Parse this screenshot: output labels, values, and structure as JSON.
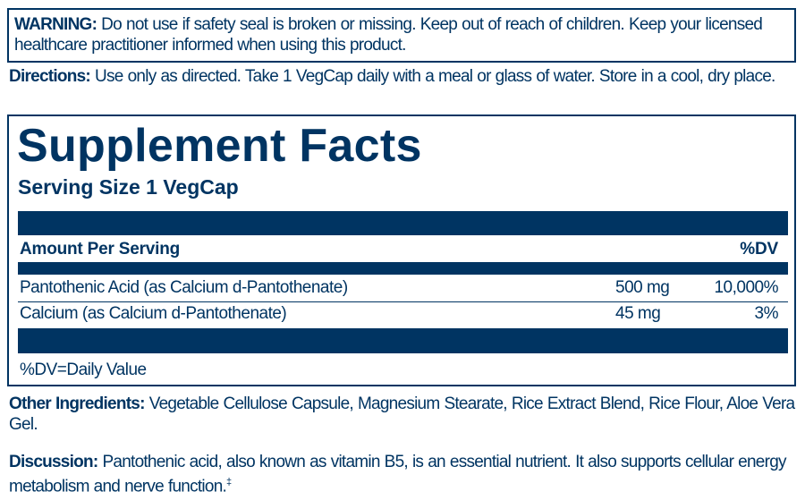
{
  "warning": {
    "label": "WARNING:",
    "text": " Do not use if safety seal is broken or missing. Keep out of reach of children. Keep your licensed healthcare practitioner informed when using this product."
  },
  "directions": {
    "label": "Directions:",
    "text": " Use only as directed. Take 1 VegCap daily with a meal or glass of water. Store in a cool, dry place."
  },
  "facts": {
    "title": "Supplement Facts",
    "serving_size": "Serving Size 1 VegCap",
    "header": {
      "amount": "Amount Per Serving",
      "dv": "%DV"
    },
    "rows": [
      {
        "name": "Pantothenic Acid (as Calcium d-Pantothenate)",
        "amount": "500 mg",
        "dv": "10,000%"
      },
      {
        "name": "Calcium (as Calcium d-Pantothenate)",
        "amount": "45 mg",
        "dv": "3%"
      }
    ],
    "footnote": "%DV=Daily Value"
  },
  "other_ingredients": {
    "label": "Other Ingredients:",
    "text": " Vegetable Cellulose Capsule, Magnesium Stearate, Rice Extract Blend, Rice Flour, Aloe Vera Gel."
  },
  "discussion": {
    "label": "Discussion:",
    "text": " Pantothenic acid, also known as vitamin B5, is an essential nutrient. It also supports cellular energy metabolism and nerve function.",
    "mark": "‡"
  },
  "colors": {
    "ink": "#003462",
    "background": "#ffffff"
  }
}
